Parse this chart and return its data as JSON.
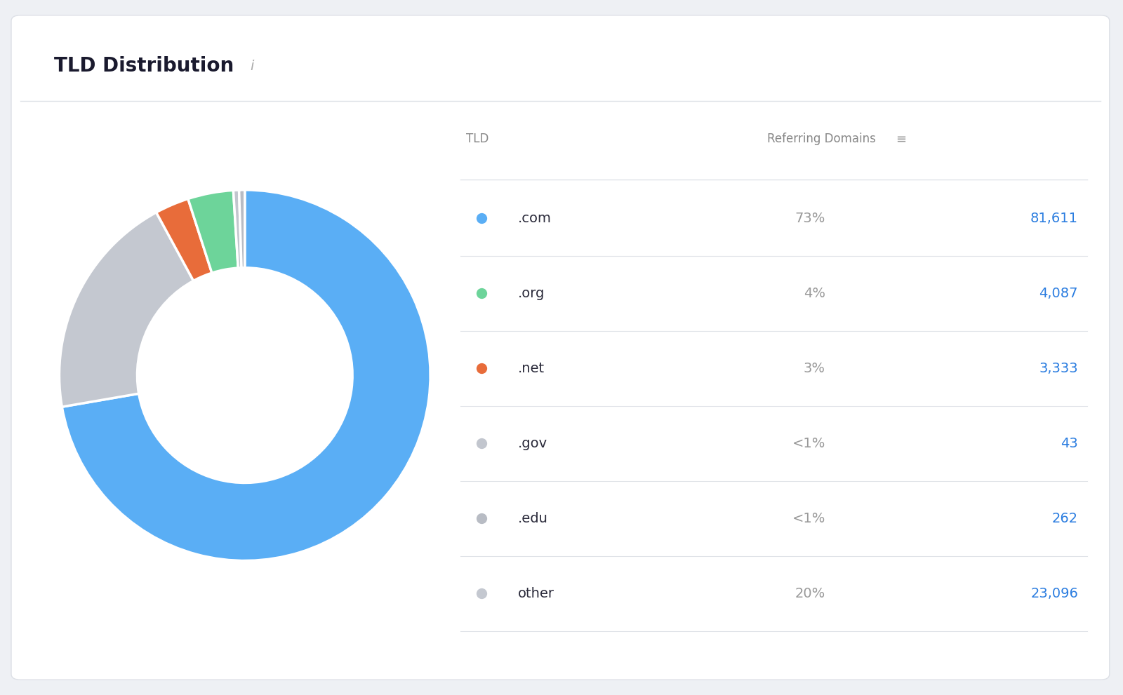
{
  "title": "TLD Distribution",
  "title_fontsize": 20,
  "info_icon": "i",
  "background_color": "#eef0f4",
  "card_color": "#ffffff",
  "segments_table": [
    {
      "label": ".com",
      "pct_str": "73%",
      "value": "81,611",
      "color": "#5aaef5"
    },
    {
      "label": ".org",
      "pct_str": "4%",
      "value": "4,087",
      "color": "#6dd49a"
    },
    {
      "label": ".net",
      "pct_str": "3%",
      "value": "3,333",
      "color": "#e86c3a"
    },
    {
      "label": ".gov",
      "pct_str": "<1%",
      "value": "43",
      "color": "#c2c6ce"
    },
    {
      "label": ".edu",
      "pct_str": "<1%",
      "value": "262",
      "color": "#b8bcc4"
    },
    {
      "label": "other",
      "pct_str": "20%",
      "value": "23,096",
      "color": "#c4c8d0"
    }
  ],
  "donut_order": [
    {
      "pct": 73,
      "color": "#5aaef5"
    },
    {
      "pct": 20,
      "color": "#c4c8d0"
    },
    {
      "pct": 3,
      "color": "#e86c3a"
    },
    {
      "pct": 4,
      "color": "#6dd49a"
    },
    {
      "pct": 0.5,
      "color": "#c2c6ce"
    },
    {
      "pct": 0.5,
      "color": "#b8bcc4"
    }
  ],
  "header_color": "#888888",
  "label_color": "#2a2a3a",
  "value_color": "#2b7de0",
  "pct_color": "#999999",
  "divider_color": "#e0e3e8",
  "title_color": "#1a1a2e",
  "card_border_color": "#dde0e6"
}
